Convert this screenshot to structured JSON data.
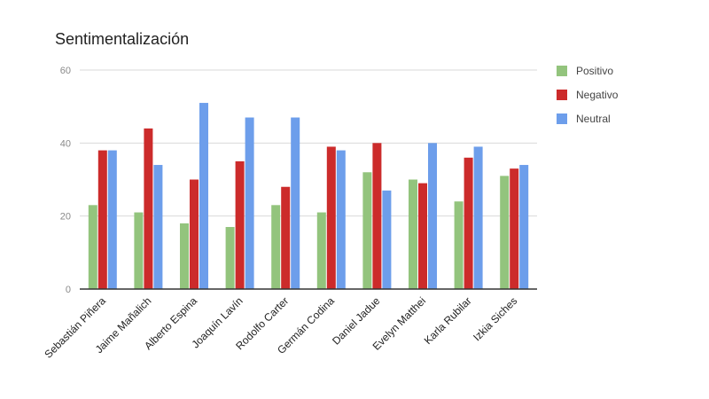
{
  "chart_data": {
    "type": "bar",
    "title": "Sentimentalización",
    "xlabel": "",
    "ylabel": "",
    "ylim": [
      0,
      60
    ],
    "yticks": [
      0,
      20,
      40,
      60
    ],
    "grid": true,
    "legend_position": "right",
    "categories": [
      "Sebastián Piñera",
      "Jaime Mañalich",
      "Alberto Espina",
      "Joaquín Lavín",
      "Rodolfo Carter",
      "Germán Codina",
      "Daniel Jadue",
      "Evelyn Matthei",
      "Karla Rubilar",
      "Izkia Siches"
    ],
    "series": [
      {
        "name": "Positivo",
        "color": "#93c47d",
        "values": [
          23,
          21,
          18,
          17,
          23,
          21,
          32,
          30,
          24,
          31
        ]
      },
      {
        "name": "Negativo",
        "color": "#cc2b2b",
        "values": [
          38,
          44,
          30,
          35,
          28,
          39,
          40,
          29,
          36,
          33
        ]
      },
      {
        "name": "Neutral",
        "color": "#6d9eeb",
        "values": [
          38,
          34,
          51,
          47,
          47,
          38,
          27,
          40,
          39,
          34
        ]
      }
    ]
  }
}
